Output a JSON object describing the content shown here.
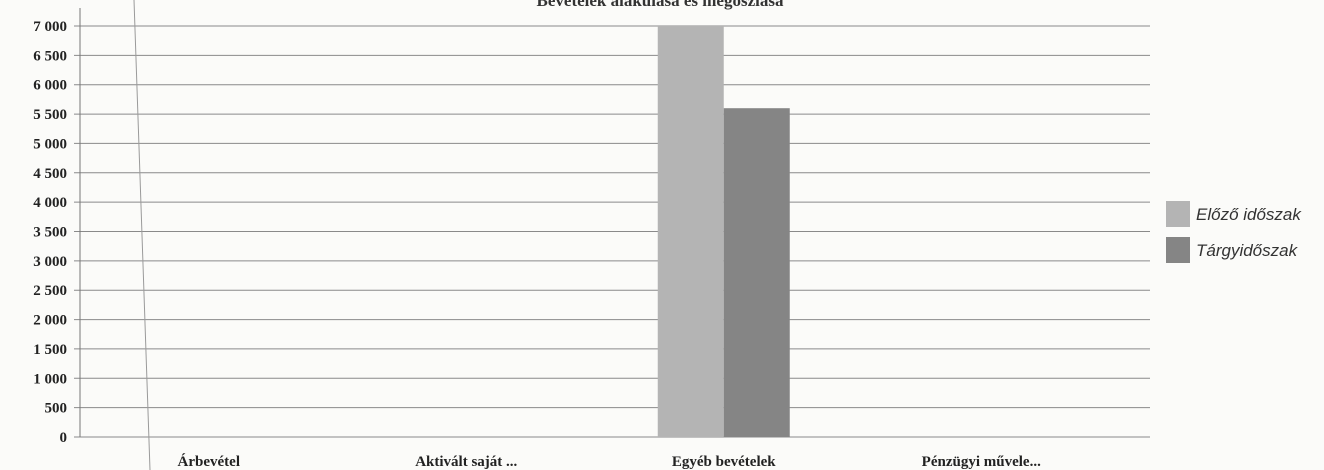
{
  "chart_data": {
    "type": "bar",
    "title": "Bevételek alakulása és megoszlása",
    "xlabel": "",
    "ylabel": "",
    "categories": [
      "Árbevétel",
      "Aktivált saját ...",
      "Egyéb bevételek",
      "Pénzügyi művele..."
    ],
    "series": [
      {
        "name": "Előző időszak",
        "color": "#b4b4b4",
        "values": [
          0,
          0,
          7000,
          0
        ]
      },
      {
        "name": "Tárgyidőszak",
        "color": "#858585",
        "values": [
          0,
          0,
          5600,
          0
        ]
      }
    ],
    "ylim": [
      0,
      7000
    ],
    "yticks": [
      0,
      500,
      1000,
      1500,
      2000,
      2500,
      3000,
      3500,
      4000,
      4500,
      5000,
      5500,
      6000,
      6500,
      7000
    ],
    "ytick_labels": [
      "0",
      "500",
      "1 000",
      "1 500",
      "2 000",
      "2 500",
      "3 000",
      "3 500",
      "4 000",
      "4 500",
      "5 000",
      "5 500",
      "6 000",
      "6 500",
      "7 000"
    ],
    "grid": true,
    "legend_position": "right"
  }
}
